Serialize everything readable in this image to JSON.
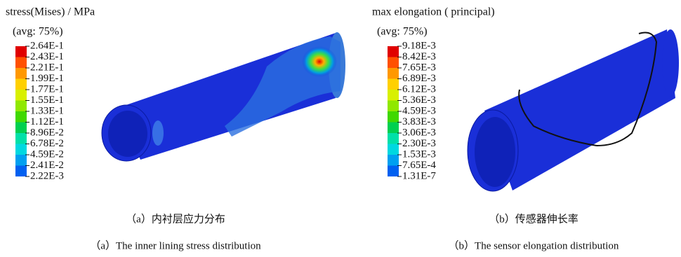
{
  "panels": [
    {
      "title": "stress(Mises) / MPa",
      "subtitle": "(avg: 75%)",
      "legend": [
        "2.64E-1",
        "2.43E-1",
        "2.21E-1",
        "1.99E-1",
        "1.77E-1",
        "1.55E-1",
        "1.33E-1",
        "1.12E-1",
        "8.96E-2",
        "6.78E-2",
        "4.59E-2",
        "2.41E-2",
        "2.22E-3"
      ],
      "caption_cn": "（a）内衬层应力分布",
      "caption_en": "（a）The inner lining stress distribution"
    },
    {
      "title": "max elongation ( principal)",
      "subtitle": "(avg: 75%)",
      "legend": [
        "9.18E-3",
        "8.42E-3",
        "7.65E-3",
        "6.89E-3",
        "6.12E-3",
        "5.36E-3",
        "4.59E-3",
        "3.83E-3",
        "3.06E-3",
        "2.30E-3",
        "1.53E-3",
        "7.65E-4",
        "1.31E-7"
      ],
      "caption_cn": "（b）传感器伸长率",
      "caption_en": "（b）The sensor elongation distribution"
    }
  ]
}
